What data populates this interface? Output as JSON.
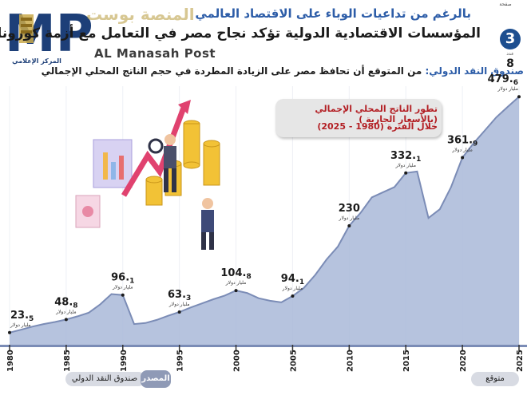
{
  "header": {
    "subhead": "بالرغم من تداعيات الوباء على الاقتصاد العالمي",
    "headline": "المؤسسات الاقتصادية الدولية تؤكد نجاح مصر في التعامل مع أزمة كورونا",
    "imf_label": "صندوق النقد الدولي:",
    "imf_text": " من المتوقع أن تحافظ مصر على الزيادة المطردة في حجم الناتج المحلي الإجمالي"
  },
  "logo": {
    "brand": "المركز الإعلامي",
    "arabic": "المنصة بوست",
    "watermark": "AL Manasah Post"
  },
  "issue": {
    "label": "صفحة",
    "circle": "3",
    "mid": "عدد",
    "number": "8"
  },
  "legend": {
    "title": "تطور الناتج المحلي الإجمالي (بالأسعار الجارية )",
    "subtitle": "خلال الفترة (1980 - 2025)"
  },
  "footer": {
    "source_tag": "المصدر",
    "source_text": "صندوق النقد الدولي",
    "forecast": "متوقع"
  },
  "colors": {
    "area": "#a9b8d8",
    "line": "#7b8cb6",
    "accent_blue": "#2d5da8",
    "accent_red": "#b31f24"
  },
  "chart_data": {
    "type": "area",
    "title": "تطور الناتج المحلي الإجمالي (بالأسعار الجارية )",
    "subtitle": "خلال الفترة (1980 - 2025)",
    "unit": "مليار دولار",
    "x_ticks": [
      1980,
      1985,
      1990,
      1995,
      2000,
      2005,
      2010,
      2015,
      2020,
      2025
    ],
    "forecast_from": 2021,
    "grid": false,
    "series": [
      {
        "x": [
          1980,
          1981,
          1982,
          1983,
          1984,
          1985,
          1986,
          1987,
          1988,
          1989,
          1990,
          1991,
          1992,
          1993,
          1994,
          1995,
          1996,
          1997,
          1998,
          1999,
          2000,
          2001,
          2002,
          2003,
          2004,
          2005,
          2006,
          2007,
          2008,
          2009,
          2010,
          2011,
          2012,
          2013,
          2014,
          2015,
          2016,
          2017,
          2018,
          2019,
          2020,
          2021,
          2022,
          2023,
          2024,
          2025
        ],
        "y": [
          23.5,
          29,
          35,
          40,
          44,
          48.8,
          55,
          62,
          78,
          98,
          96.1,
          40,
          42,
          48,
          56,
          63.3,
          72,
          80,
          88,
          95,
          104.8,
          100,
          90,
          85,
          82,
          94.1,
          110,
          135,
          165,
          190,
          230,
          255,
          285,
          295,
          305,
          332.1,
          335,
          245,
          262,
          305,
          361.9,
          390,
          415,
          440,
          460,
          479.6
        ]
      }
    ],
    "labels": [
      {
        "x": 1980,
        "y": 23.5,
        "int": "23.",
        "dec": "5",
        "unit": "مليار دولار"
      },
      {
        "x": 1985,
        "y": 48.8,
        "int": "48.",
        "dec": "8",
        "unit": "مليار دولار"
      },
      {
        "x": 1990,
        "y": 96.1,
        "int": "96.",
        "dec": "1",
        "unit": "مليار دولار"
      },
      {
        "x": 1995,
        "y": 63.3,
        "int": "63.",
        "dec": "3",
        "unit": "مليار دولار"
      },
      {
        "x": 2000,
        "y": 104.8,
        "int": "104.",
        "dec": "8",
        "unit": "مليار دولار"
      },
      {
        "x": 2005,
        "y": 94.1,
        "int": "94.",
        "dec": "1",
        "unit": "مليار دولار"
      },
      {
        "x": 2010,
        "y": 230,
        "int": "230",
        "dec": "",
        "unit": "مليار دولار"
      },
      {
        "x": 2015,
        "y": 332.1,
        "int": "332.",
        "dec": "1",
        "unit": "مليار دولار"
      },
      {
        "x": 2020,
        "y": 361.9,
        "int": "361.",
        "dec": "9",
        "unit": "مليار دولار"
      },
      {
        "x": 2025,
        "y": 479.6,
        "int": "479.",
        "dec": "6",
        "unit": "مليار دولار"
      }
    ]
  }
}
